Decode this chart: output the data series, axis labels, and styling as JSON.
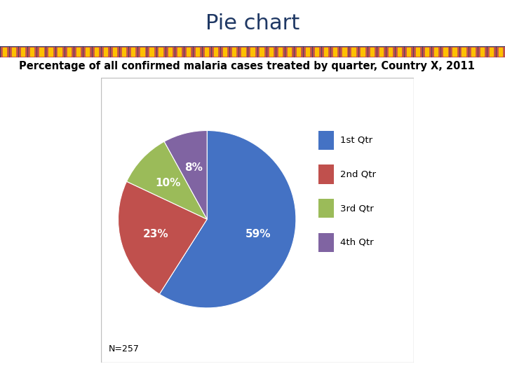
{
  "title": "Pie chart",
  "subtitle": "Percentage of all confirmed malaria cases treated by quarter, Country X, 2011",
  "slices": [
    59,
    23,
    10,
    8
  ],
  "labels": [
    "1st Qtr",
    "2nd Qtr",
    "3rd Qtr",
    "4th Qtr"
  ],
  "colors": [
    "#4472C4",
    "#C0504D",
    "#9BBB59",
    "#8064A2"
  ],
  "pct_labels": [
    "59%",
    "23%",
    "10%",
    "8%"
  ],
  "n_label": "N=257",
  "title_color": "#1F3864",
  "subtitle_color": "#000000",
  "border_color": "#BFBFBF",
  "startangle": 90,
  "title_fontsize": 22,
  "subtitle_fontsize": 10.5,
  "legend_fontsize": 9.5,
  "pct_fontsize": 11,
  "n_fontsize": 9,
  "banner_bg": "#1F3864",
  "banner_rect_color1": "#C0504D",
  "banner_rect_color2": "#FFC000"
}
